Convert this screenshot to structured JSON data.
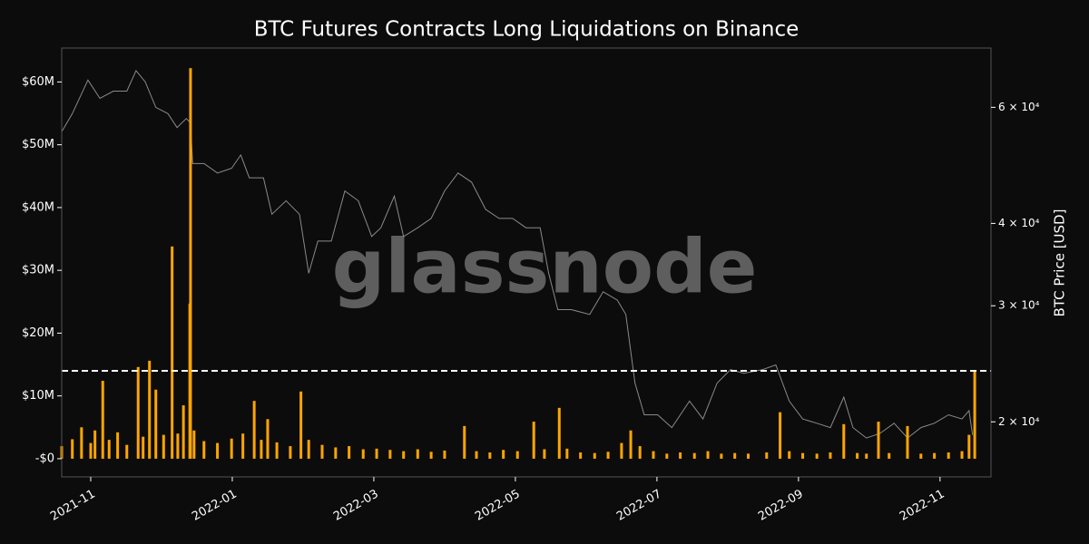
{
  "chart_data": {
    "type": "combo",
    "title": "BTC Futures Contracts Long Liquidations on Binance",
    "y2_label": "BTC Price [USD]",
    "watermark": "glassnode",
    "xlim": [
      -0.41,
      12.72
    ],
    "xticks": [
      {
        "value": 0,
        "label": "2021-11"
      },
      {
        "value": 2,
        "label": "2022-01"
      },
      {
        "value": 4,
        "label": "2022-03"
      },
      {
        "value": 6,
        "label": "2022-05"
      },
      {
        "value": 8,
        "label": "2022-07"
      },
      {
        "value": 10,
        "label": "2022-09"
      },
      {
        "value": 12,
        "label": "2022-11"
      }
    ],
    "ylim": [
      -2.9,
      65.4
    ],
    "yticks": [
      {
        "value": 0,
        "label": "-$0"
      },
      {
        "value": 10,
        "label": "$10M"
      },
      {
        "value": 20,
        "label": "$20M"
      },
      {
        "value": 30,
        "label": "$30M"
      },
      {
        "value": 40,
        "label": "$40M"
      },
      {
        "value": 50,
        "label": "$50M"
      },
      {
        "value": 60,
        "label": "$60M"
      }
    ],
    "y2lim": [
      16500,
      73800
    ],
    "y2log": true,
    "y2ticks": [
      {
        "value": 20000,
        "label": "2 × 10⁴"
      },
      {
        "value": 30000,
        "label": "3 × 10⁴"
      },
      {
        "value": 40000,
        "label": "4 × 10⁴"
      },
      {
        "value": 60000,
        "label": "6 × 10⁴"
      }
    ],
    "hline": 14,
    "series": [
      {
        "type": "bar",
        "color": "#ffa500",
        "x": [
          -0.41,
          -0.26,
          -0.13,
          0,
          0.06,
          0.17,
          0.26,
          0.38,
          0.51,
          0.67,
          0.74,
          0.83,
          0.92,
          1.03,
          1.15,
          1.23,
          1.31,
          1.4,
          1.41,
          1.46,
          1.6,
          1.79,
          1.99,
          2.15,
          2.31,
          2.41,
          2.5,
          2.63,
          2.82,
          2.97,
          3.08,
          3.27,
          3.46,
          3.65,
          3.85,
          4.04,
          4.23,
          4.42,
          4.62,
          4.81,
          5.0,
          5.28,
          5.45,
          5.64,
          5.83,
          6.03,
          6.26,
          6.41,
          6.62,
          6.73,
          6.92,
          7.12,
          7.31,
          7.5,
          7.63,
          7.76,
          7.95,
          8.14,
          8.33,
          8.53,
          8.72,
          8.91,
          9.1,
          9.29,
          9.55,
          9.74,
          9.87,
          10.06,
          10.26,
          10.45,
          10.64,
          10.83,
          10.96,
          11.13,
          11.28,
          11.54,
          11.73,
          11.92,
          12.12,
          12.31,
          12.41,
          12.49
        ],
        "values": [
          2.0,
          3.1,
          5.0,
          2.5,
          4.5,
          12.4,
          3.0,
          4.2,
          2.2,
          14.6,
          3.5,
          15.6,
          11.0,
          3.8,
          33.8,
          4.0,
          8.5,
          24.7,
          62.2,
          4.5,
          2.8,
          2.5,
          3.2,
          4.0,
          9.2,
          3.0,
          6.3,
          2.6,
          2.0,
          10.7,
          3.0,
          2.2,
          1.8,
          2.0,
          1.5,
          1.6,
          1.4,
          1.2,
          1.5,
          1.1,
          1.3,
          5.2,
          1.2,
          1.0,
          1.4,
          1.2,
          5.9,
          1.5,
          8.1,
          1.6,
          1.0,
          0.9,
          1.1,
          2.5,
          4.5,
          2.0,
          1.2,
          0.8,
          1.0,
          0.9,
          1.2,
          0.8,
          0.9,
          0.8,
          1.0,
          7.4,
          1.2,
          0.9,
          0.8,
          1.0,
          5.5,
          0.9,
          0.8,
          5.9,
          0.9,
          5.2,
          0.8,
          0.9,
          1.0,
          1.2,
          3.8,
          14.1
        ]
      },
      {
        "type": "line",
        "axis": "y2",
        "color": "#8a8a8a",
        "x": [
          -0.41,
          -0.26,
          -0.04,
          0.13,
          0.32,
          0.51,
          0.64,
          0.77,
          0.92,
          1.09,
          1.22,
          1.35,
          1.41,
          1.44,
          1.6,
          1.79,
          1.99,
          2.12,
          2.24,
          2.44,
          2.56,
          2.76,
          2.95,
          3.08,
          3.21,
          3.4,
          3.59,
          3.78,
          3.97,
          4.1,
          4.29,
          4.42,
          4.62,
          4.81,
          5.0,
          5.19,
          5.38,
          5.58,
          5.77,
          5.96,
          6.15,
          6.35,
          6.47,
          6.6,
          6.79,
          7.05,
          7.24,
          7.44,
          7.56,
          7.69,
          7.82,
          8.01,
          8.21,
          8.46,
          8.65,
          8.85,
          9.04,
          9.23,
          9.49,
          9.68,
          9.87,
          10.06,
          10.26,
          10.45,
          10.64,
          10.77,
          10.96,
          11.15,
          11.35,
          11.54,
          11.73,
          11.92,
          12.12,
          12.31,
          12.41,
          12.46
        ],
        "values": [
          55100,
          58700,
          66000,
          61900,
          63500,
          63500,
          68200,
          65600,
          60000,
          58700,
          55900,
          57700,
          56800,
          49300,
          49300,
          47700,
          48500,
          50800,
          46900,
          46900,
          41300,
          43300,
          41300,
          33600,
          37600,
          37600,
          44800,
          43300,
          38200,
          39400,
          44000,
          38200,
          39400,
          40700,
          44800,
          47700,
          46200,
          42000,
          40700,
          40700,
          39400,
          39400,
          33600,
          29600,
          29600,
          29100,
          31500,
          30600,
          29100,
          22900,
          20500,
          20500,
          19600,
          21500,
          20200,
          22900,
          24000,
          23700,
          24000,
          24400,
          21500,
          20200,
          19900,
          19600,
          21800,
          19600,
          18900,
          19200,
          19900,
          18900,
          19600,
          19900,
          20500,
          20200,
          20800,
          19100
        ]
      }
    ]
  }
}
